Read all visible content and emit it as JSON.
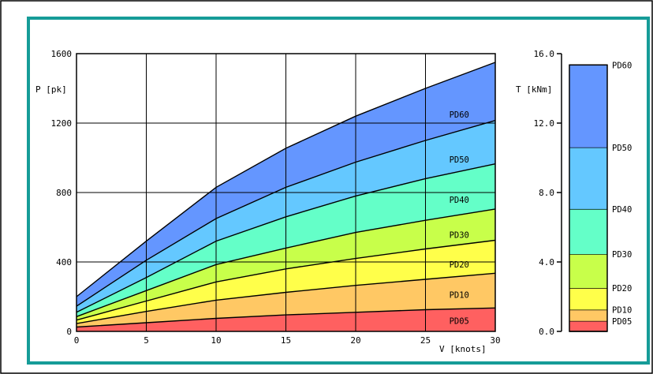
{
  "chart_data": [
    {
      "type": "area",
      "title": "",
      "xlabel": "V [knots]",
      "ylabel": "P [pk]",
      "xlim": [
        0,
        30
      ],
      "ylim": [
        0,
        1600
      ],
      "x_ticks": [
        0,
        5,
        10,
        15,
        20,
        25,
        30
      ],
      "y_ticks": [
        0,
        400,
        800,
        1200,
        1600
      ],
      "grid": true,
      "x": [
        0,
        5,
        10,
        15,
        20,
        25,
        30
      ],
      "series": [
        {
          "name": "PD05",
          "color": "#ff6060",
          "values": [
            25,
            50,
            75,
            95,
            110,
            125,
            135
          ]
        },
        {
          "name": "PD10",
          "color": "#ffc864",
          "values": [
            45,
            115,
            180,
            225,
            265,
            300,
            335
          ]
        },
        {
          "name": "PD20",
          "color": "#ffff4a",
          "values": [
            65,
            175,
            285,
            360,
            420,
            475,
            525
          ]
        },
        {
          "name": "PD30",
          "color": "#c8ff4a",
          "values": [
            85,
            235,
            385,
            480,
            570,
            640,
            705
          ]
        },
        {
          "name": "PD40",
          "color": "#64ffc8",
          "values": [
            110,
            310,
            520,
            660,
            780,
            880,
            965
          ]
        },
        {
          "name": "PD50",
          "color": "#64c8ff",
          "values": [
            145,
            410,
            650,
            830,
            975,
            1100,
            1215
          ]
        },
        {
          "name": "PD60",
          "color": "#6496ff",
          "values": [
            200,
            520,
            830,
            1055,
            1240,
            1400,
            1550
          ]
        }
      ]
    },
    {
      "type": "bar",
      "title": "",
      "xlabel": "",
      "ylabel": "T [kNm]",
      "ylim": [
        0,
        16
      ],
      "y_ticks": [
        "0.0",
        "4.0",
        "8.0",
        "12.0",
        "16.0"
      ],
      "grid": false,
      "series": [
        {
          "name": "PD05",
          "color": "#ff6060",
          "top": 0.6
        },
        {
          "name": "PD10",
          "color": "#ffc864",
          "top": 1.25
        },
        {
          "name": "PD20",
          "color": "#ffff4a",
          "top": 2.5
        },
        {
          "name": "PD30",
          "color": "#c8ff4a",
          "top": 4.45
        },
        {
          "name": "PD40",
          "color": "#64ffc8",
          "top": 7.05
        },
        {
          "name": "PD50",
          "color": "#64c8ff",
          "top": 10.6
        },
        {
          "name": "PD60",
          "color": "#6496ff",
          "top": 15.35
        }
      ]
    }
  ],
  "colors": {
    "frame_border": "#169c98",
    "outer_border": "#000000",
    "background": "#ffffff"
  }
}
